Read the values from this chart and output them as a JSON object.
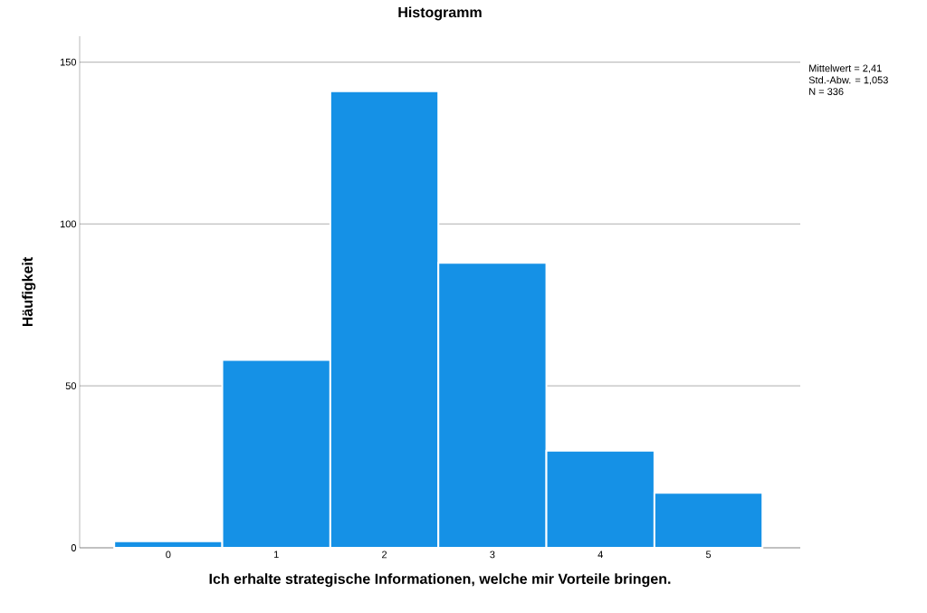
{
  "chart_data": {
    "type": "histogram",
    "title": "Histogramm",
    "xlabel": "Ich erhalte strategische Informationen, welche mir Vorteile bringen.",
    "ylabel": "Häufigkeit",
    "bins": [
      -0.5,
      0.5,
      1.5,
      2.5,
      3.5,
      4.5,
      5.5
    ],
    "values": [
      2,
      58,
      141,
      88,
      30,
      17
    ],
    "color": "#1591e6",
    "xlim": [
      -0.82,
      5.85
    ],
    "ylim": [
      0,
      158
    ],
    "xticks": [
      0,
      1,
      2,
      3,
      4,
      5
    ],
    "yticks": [
      0,
      50,
      100,
      150
    ],
    "grid": "y",
    "annotations": [
      "Mittelwert = 2,41",
      "Std.-Abw. = 1,053",
      "N = 336"
    ]
  }
}
